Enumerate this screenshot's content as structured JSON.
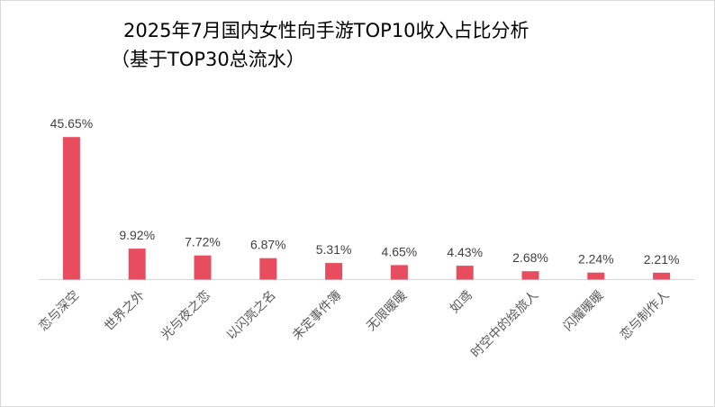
{
  "chart_data": {
    "type": "bar",
    "title": "2025年7月国内女性向手游TOP10收入占比分析",
    "subtitle": "（基于TOP30总流水）",
    "categories": [
      "恋与深空",
      "世界之外",
      "光与夜之恋",
      "以闪亮之名",
      "未定事件簿",
      "无限暖暖",
      "如鸢",
      "时空中的绘旅人",
      "闪耀暖暖",
      "恋与制作人"
    ],
    "values": [
      45.65,
      9.92,
      7.72,
      6.87,
      5.31,
      4.65,
      4.43,
      2.68,
      2.24,
      2.21
    ],
    "value_labels": [
      "45.65%",
      "9.92%",
      "7.72%",
      "6.87%",
      "5.31%",
      "4.65%",
      "4.43%",
      "2.68%",
      "2.24%",
      "2.21%"
    ],
    "xlabel": "",
    "ylabel": "",
    "ylim": [
      0,
      46
    ],
    "grid": false,
    "legend": "none",
    "bar_color": "#e84c5f",
    "axis_color": "#d9d9d9"
  }
}
